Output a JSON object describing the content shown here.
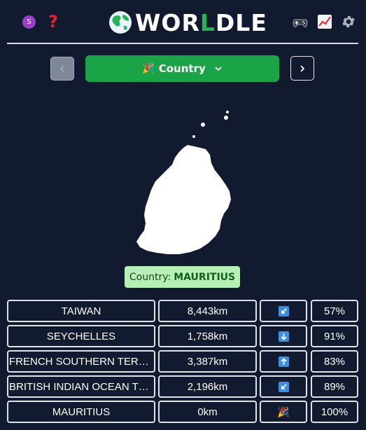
{
  "header": {
    "avatar_letter": "S",
    "help_symbol": "?",
    "logo_pre": "WOR",
    "logo_green": "L",
    "logo_post": "DLE",
    "icons": [
      "game-controller-icon",
      "stats-chart-icon",
      "gear-icon"
    ]
  },
  "nav": {
    "mode_emoji": "🎉",
    "mode_label": "Country"
  },
  "answer": {
    "label": "Country:",
    "value": "MAURITIUS"
  },
  "guesses": [
    {
      "name": "TAIWAN",
      "distance": "8,443km",
      "direction": "down-left-arrow-icon",
      "proximity": "57%"
    },
    {
      "name": "SEYCHELLES",
      "distance": "1,758km",
      "direction": "down-arrow-icon",
      "proximity": "91%"
    },
    {
      "name": "FRENCH SOUTHERN TERRIT...",
      "distance": "3,387km",
      "direction": "up-arrow-icon",
      "proximity": "83%"
    },
    {
      "name": "BRITISH INDIAN OCEAN TE...",
      "distance": "2,196km",
      "direction": "down-left-arrow-icon",
      "proximity": "89%"
    },
    {
      "name": "MAURITIUS",
      "distance": "0km",
      "direction": "party-popper-icon",
      "proximity": "100%",
      "win_emoji": "🎉"
    }
  ],
  "colors": {
    "background": "#111a2e",
    "accent_green": "#1aa447",
    "answer_bg": "#b7f0b6",
    "direction_blue": "#3b8fe0"
  }
}
